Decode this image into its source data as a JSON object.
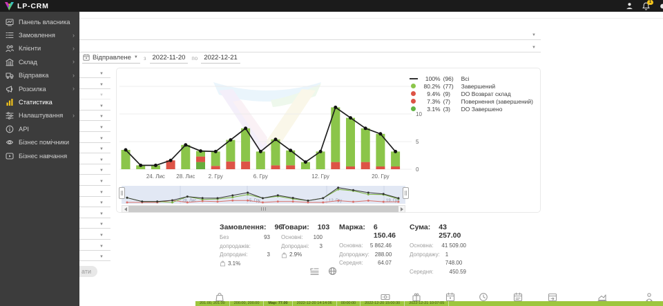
{
  "header": {
    "brand": "LP-CRM",
    "notification_count": "1"
  },
  "sidebar": {
    "items": [
      {
        "label": "Панель власника",
        "icon": "dashboard",
        "chevron": false,
        "active": false
      },
      {
        "label": "Замовлення",
        "icon": "orders",
        "chevron": true,
        "active": false
      },
      {
        "label": "Клієнти",
        "icon": "clients",
        "chevron": true,
        "active": false
      },
      {
        "label": "Склад",
        "icon": "warehouse",
        "chevron": true,
        "active": false
      },
      {
        "label": "Відправка",
        "icon": "shipping",
        "chevron": true,
        "active": false
      },
      {
        "label": "Розсилка",
        "icon": "mailing",
        "chevron": true,
        "active": false
      },
      {
        "label": "Статистика",
        "icon": "stats",
        "chevron": false,
        "active": true
      },
      {
        "label": "Налаштування",
        "icon": "settings",
        "chevron": true,
        "active": false
      },
      {
        "label": "API",
        "icon": "api",
        "chevron": false,
        "active": false
      },
      {
        "label": "Бізнес помічники",
        "icon": "helpers",
        "chevron": false,
        "active": false
      },
      {
        "label": "Бізнес навчання",
        "icon": "training",
        "chevron": false,
        "active": false
      }
    ]
  },
  "filters": {
    "wide_selects_count": 2,
    "left_selects_count": 18,
    "date": {
      "type": "Відправлене",
      "from_label": "з",
      "from": "2022-11-20",
      "to_label": "по",
      "to": "2022-12-21"
    },
    "search_button_label": "ати"
  },
  "chart_data": {
    "type": "bar+line",
    "n_points": 19,
    "x_tick_labels": {
      "2": "24. Лис",
      "4": "28. Лис",
      "6": "2. Гру",
      "9": "6. Гру",
      "13": "12. Гру",
      "17": "20. Гру"
    },
    "yticks": [
      0,
      5,
      10
    ],
    "ylim": [
      0,
      12.5
    ],
    "grid": true,
    "legend_position": "top-right",
    "line_series": {
      "name": "Всі",
      "values": [
        3.5,
        0.7,
        0.7,
        1.6,
        4.4,
        3.3,
        3.2,
        5.3,
        7.4,
        3.2,
        5.4,
        3.4,
        1.3,
        3.2,
        11.2,
        9.3,
        7.4,
        6.4,
        3.2
      ]
    },
    "bar_segments": [
      [
        [
          "green",
          3.5
        ]
      ],
      [
        [
          "green",
          0.7
        ]
      ],
      [
        [
          "green",
          0.7
        ]
      ],
      [
        [
          "red",
          1.6
        ]
      ],
      [
        [
          "green",
          4.4
        ]
      ],
      [
        [
          "dark_green",
          1.3
        ],
        [
          "red",
          1.0
        ],
        [
          "green",
          1.0
        ]
      ],
      [
        [
          "red",
          0.6
        ],
        [
          "green",
          2.6
        ]
      ],
      [
        [
          "red",
          1.4
        ],
        [
          "green",
          3.9
        ]
      ],
      [
        [
          "red",
          1.4
        ],
        [
          "green",
          6.0
        ]
      ],
      [
        [
          "green",
          3.2
        ]
      ],
      [
        [
          "red",
          0.7
        ],
        [
          "green",
          4.7
        ]
      ],
      [
        [
          "red",
          0.7
        ],
        [
          "green",
          2.7
        ]
      ],
      [
        [
          "green",
          1.3
        ]
      ],
      [
        [
          "green",
          3.2
        ]
      ],
      [
        [
          "red",
          1.3
        ],
        [
          "green",
          9.9
        ]
      ],
      [
        [
          "red",
          0.5
        ],
        [
          "green",
          8.8
        ]
      ],
      [
        [
          "red",
          1.3
        ],
        [
          "green",
          6.1
        ]
      ],
      [
        [
          "red",
          0.5
        ],
        [
          "green",
          5.9
        ]
      ],
      [
        [
          "red",
          0.5
        ],
        [
          "green",
          2.7
        ]
      ]
    ],
    "colors": {
      "green": "#8bc54a",
      "dark_green": "#66ad3c",
      "red": "#dd5346",
      "line": "#1e1e1e"
    }
  },
  "legend": [
    {
      "marker": "line",
      "color": "#333333",
      "pct": "100%",
      "count": "(96)",
      "label": "Всі"
    },
    {
      "marker": "dot",
      "color": "#8bc54a",
      "pct": "80.2%",
      "count": "(77)",
      "label": "Завершений"
    },
    {
      "marker": "dot",
      "color": "#dd5346",
      "pct": "9.4%",
      "count": "(9)",
      "label": "DO Возврат склад"
    },
    {
      "marker": "dot",
      "color": "#dd5346",
      "pct": "7.3%",
      "count": "(7)",
      "label": "Повернення (завершений)"
    },
    {
      "marker": "dot",
      "color": "#62b544",
      "pct": "3.1%",
      "count": "(3)",
      "label": "DO Завершено"
    }
  ],
  "navigator": {
    "labels": [
      "28. Лис",
      "5. Гру",
      "12. Гру",
      "19. Гру"
    ]
  },
  "stats": [
    {
      "title": "Замовлення:",
      "value": "96",
      "rows": [
        {
          "label": "Без допродажів:",
          "value": "93"
        },
        {
          "label": "Допродані:",
          "value": "3"
        },
        {
          "icon": "bag",
          "value": "3.1%"
        }
      ]
    },
    {
      "title": "Товари:",
      "value": "103",
      "rows": [
        {
          "label": "Основні:",
          "value": "100"
        },
        {
          "label": "Допродані:",
          "value": "3"
        },
        {
          "icon": "bag",
          "value": "2.9%"
        }
      ]
    },
    {
      "title": "Маржа:",
      "value": "6 150.46",
      "rows": [
        {
          "label": "Основна:",
          "value": "5 862.46"
        },
        {
          "label": "Допродажу:",
          "value": "288.00"
        },
        {
          "label": "Середня:",
          "value": "64.07"
        }
      ]
    },
    {
      "title": "Сума:",
      "value": "43 257.00",
      "rows": [
        {
          "label": "Основна:",
          "value": "41 509.00"
        },
        {
          "label": "Допродажу:",
          "value": "1 748.00"
        },
        {
          "label": "Середня:",
          "value": "450.59"
        }
      ]
    }
  ],
  "view_toggles": [
    "list-chart",
    "globe"
  ],
  "bottom_table": {
    "header_icons": [
      "bag",
      "banknote",
      "gift",
      "calendar",
      "clock",
      "calendar-day",
      "calendar-export",
      "area-chart",
      "person"
    ],
    "row": {
      "color": "#9dc63e",
      "cells": [
        "201.00, 201.00",
        "200.00, 200.00",
        "Мар: 77.00",
        "2022-12-20 14:14:06",
        "00:00:00",
        "2022-12-20 15:00:30",
        "2022-12-21 10:07:05"
      ]
    }
  }
}
